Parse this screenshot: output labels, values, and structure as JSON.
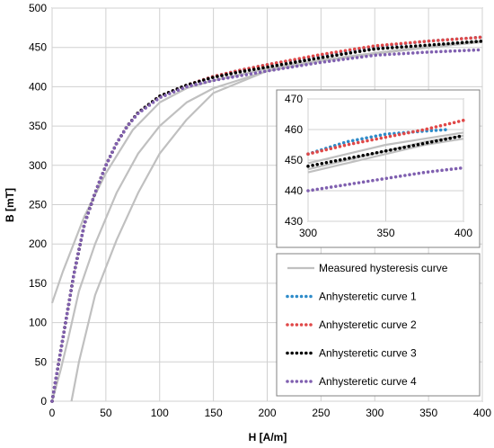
{
  "chart_data": [
    {
      "type": "line",
      "xlabel": "H [A/m]",
      "ylabel": "B [mT]",
      "xlim": [
        0,
        400
      ],
      "ylim": [
        0,
        500
      ],
      "xticks": [
        0,
        50,
        100,
        150,
        200,
        250,
        300,
        350,
        400
      ],
      "yticks": [
        0,
        50,
        100,
        150,
        200,
        250,
        300,
        350,
        400,
        450,
        500
      ],
      "grid": true,
      "legend_position": "bottom-right",
      "series": [
        {
          "name": "Measured hysteresis curve",
          "color": "#c0c0c0",
          "style": "solid",
          "branches": [
            {
              "x": [
                0,
                10,
                20,
                30,
                50,
                75,
                100,
                125,
                150,
                200,
                250,
                300,
                350,
                400
              ],
              "y": [
                125,
                165,
                200,
                235,
                290,
                345,
                380,
                398,
                408,
                423,
                434,
                443,
                451,
                458
              ]
            },
            {
              "x": [
                18,
                25,
                40,
                60,
                80,
                100,
                125,
                150,
                200,
                250,
                300,
                350,
                400
              ],
              "y": [
                0,
                50,
                135,
                205,
                265,
                315,
                358,
                392,
                420,
                433,
                442,
                450,
                457
              ]
            },
            {
              "x": [
                0,
                8,
                15,
                25,
                40,
                60,
                80,
                100,
                125,
                150,
                200,
                250,
                300,
                350,
                400
              ],
              "y": [
                0,
                40,
                80,
                140,
                200,
                265,
                315,
                350,
                380,
                398,
                420,
                433,
                442,
                450,
                457
              ]
            }
          ]
        },
        {
          "name": "Anhysteretic curve 1",
          "color": "#2e8bc9",
          "style": "dotted",
          "x": [
            0,
            5,
            10,
            20,
            30,
            40,
            50,
            60,
            70,
            80,
            100,
            125,
            150,
            175,
            200,
            250,
            300,
            350,
            400
          ],
          "y": [
            0,
            40,
            80,
            160,
            225,
            265,
            300,
            328,
            350,
            367,
            388,
            402,
            413,
            421,
            428,
            440,
            451,
            458,
            463
          ]
        },
        {
          "name": "Anhysteretic curve 2",
          "color": "#e04848",
          "style": "dotted",
          "x": [
            0,
            5,
            10,
            20,
            30,
            40,
            50,
            60,
            70,
            80,
            100,
            125,
            150,
            175,
            200,
            250,
            300,
            350,
            400
          ],
          "y": [
            0,
            40,
            80,
            160,
            225,
            265,
            300,
            328,
            350,
            367,
            388,
            402,
            413,
            421,
            428,
            441,
            452,
            458,
            463
          ]
        },
        {
          "name": "Anhysteretic curve 3",
          "color": "#000000",
          "style": "dotted",
          "x": [
            0,
            5,
            10,
            20,
            30,
            40,
            50,
            60,
            70,
            80,
            100,
            125,
            150,
            175,
            200,
            250,
            300,
            350,
            400
          ],
          "y": [
            0,
            40,
            80,
            160,
            225,
            265,
            300,
            328,
            350,
            367,
            388,
            402,
            412,
            419,
            425,
            437,
            448,
            453,
            458
          ]
        },
        {
          "name": "Anhysteretic curve 4",
          "color": "#8060b0",
          "style": "dotted",
          "x": [
            0,
            5,
            10,
            20,
            30,
            40,
            50,
            60,
            70,
            80,
            100,
            125,
            150,
            175,
            200,
            250,
            300,
            350,
            400
          ],
          "y": [
            0,
            40,
            80,
            160,
            225,
            265,
            300,
            328,
            350,
            366,
            386,
            400,
            408,
            414,
            420,
            431,
            440,
            444,
            447
          ]
        }
      ]
    },
    {
      "type": "line",
      "role": "inset",
      "xlim": [
        300,
        400
      ],
      "ylim": [
        430,
        470
      ],
      "xticks": [
        300,
        350,
        400
      ],
      "yticks": [
        430,
        440,
        450,
        460,
        470
      ],
      "grid": true,
      "series": [
        {
          "name": "Measured hysteresis curve",
          "color": "#c0c0c0",
          "style": "solid",
          "branches": [
            {
              "x": [
                300,
                325,
                350,
                375,
                400
              ],
              "y": [
                449,
                452,
                455,
                457,
                459
              ]
            },
            {
              "x": [
                300,
                325,
                350,
                375,
                400
              ],
              "y": [
                447,
                450,
                453,
                456,
                458
              ]
            },
            {
              "x": [
                300,
                325,
                350,
                375,
                400
              ],
              "y": [
                446,
                449,
                452,
                455,
                457
              ]
            }
          ]
        },
        {
          "name": "Anhysteretic curve 1",
          "color": "#2e8bc9",
          "style": "dotted",
          "x": [
            300,
            325,
            350,
            375,
            390
          ],
          "y": [
            452,
            456,
            458.5,
            459.5,
            460
          ]
        },
        {
          "name": "Anhysteretic curve 2",
          "color": "#e04848",
          "style": "dotted",
          "x": [
            300,
            325,
            350,
            375,
            400
          ],
          "y": [
            452,
            455,
            457.5,
            460,
            463
          ]
        },
        {
          "name": "Anhysteretic curve 3",
          "color": "#000000",
          "style": "dotted",
          "x": [
            300,
            325,
            350,
            375,
            400
          ],
          "y": [
            448,
            450.5,
            453,
            455.5,
            458
          ]
        },
        {
          "name": "Anhysteretic curve 4",
          "color": "#8060b0",
          "style": "dotted",
          "x": [
            300,
            325,
            350,
            375,
            400
          ],
          "y": [
            440,
            442,
            444,
            446,
            447.5
          ]
        }
      ]
    }
  ]
}
